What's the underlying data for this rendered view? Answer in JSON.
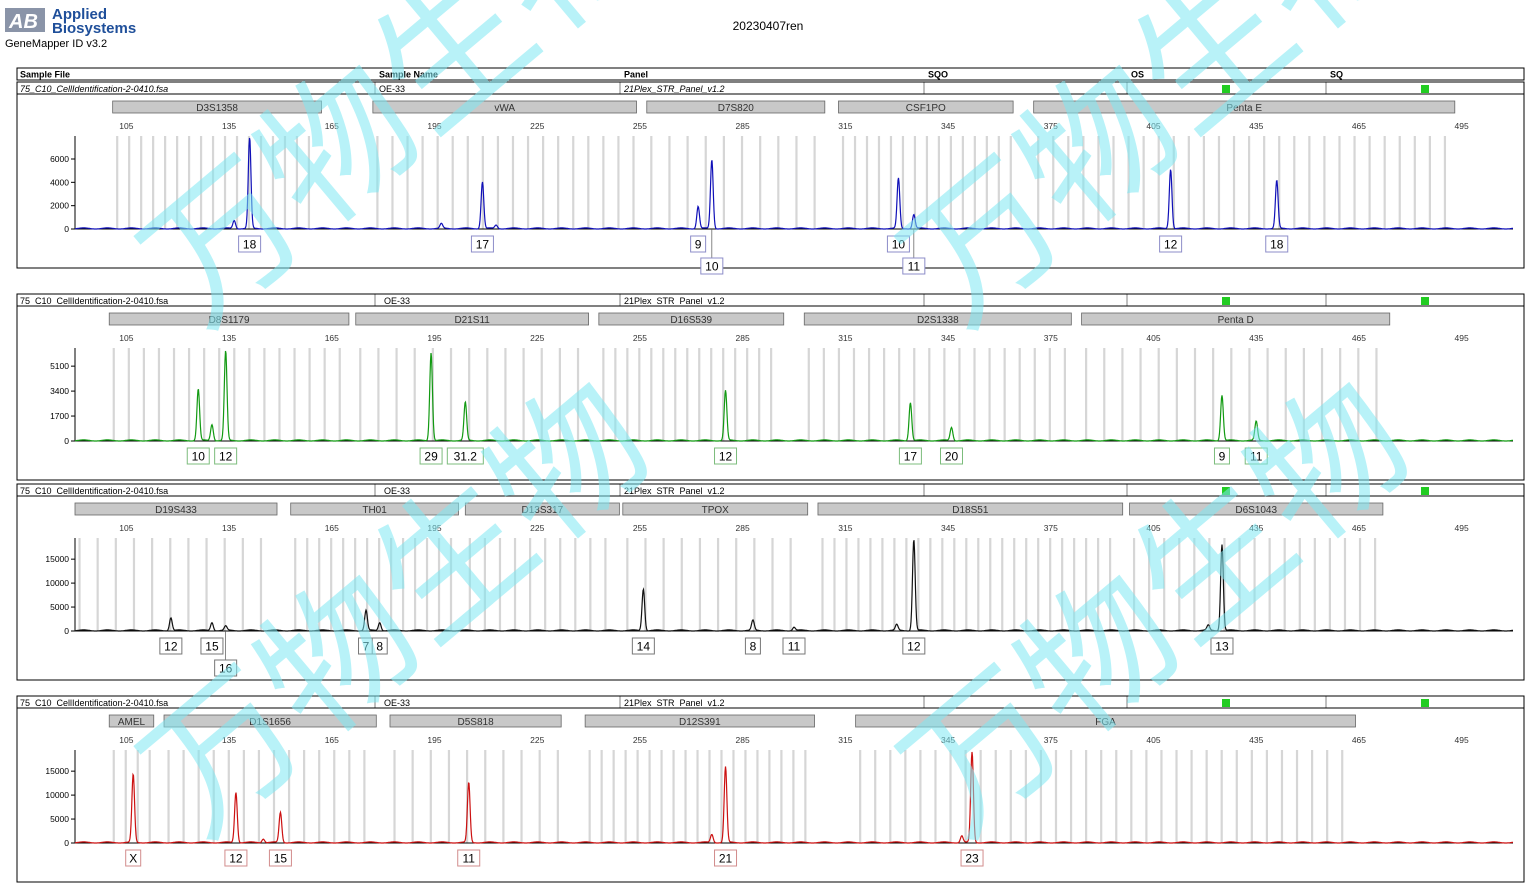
{
  "header": {
    "logo_line1": "Applied",
    "logo_line2": "Biosystems",
    "logo_mark": "AB",
    "software": "GeneMapper ID v3.2",
    "run_title": "20230407ren"
  },
  "columns": [
    "Sample File",
    "Sample Name",
    "Panel",
    "SQO",
    "OS",
    "SQ"
  ],
  "colors": {
    "status_ok": "#22cc22",
    "bin_gray": "#d6d6d6",
    "marker_box": "#c8c8c8",
    "watermark": "#7ee8f2"
  },
  "watermark_text": "万物生物",
  "size_axis": {
    "min": 90,
    "max": 510,
    "ticks": [
      105,
      135,
      165,
      195,
      225,
      255,
      285,
      315,
      345,
      375,
      405,
      435,
      465,
      495
    ]
  },
  "panels": [
    {
      "sample_file": "75_C10_CellIdentification-2-0410.fsa",
      "sample_name": "OE-33",
      "panel": "21Plex_STR_Panel_v1.2",
      "dye_color": "#1010b8",
      "label_border": "#8c8cc8",
      "y_ticks": [
        0,
        2000,
        4000,
        6000
      ],
      "y_max": 7800,
      "markers": [
        {
          "name": "D3S1358",
          "from": 101,
          "to": 162
        },
        {
          "name": "vWA",
          "from": 177,
          "to": 254
        },
        {
          "name": "D7S820",
          "from": 257,
          "to": 309
        },
        {
          "name": "CSF1PO",
          "from": 313,
          "to": 364
        },
        {
          "name": "Penta E",
          "from": 370,
          "to": 493
        }
      ],
      "peaks": [
        {
          "size": 141,
          "height": 7800,
          "allele": "18",
          "row": 1
        },
        {
          "size": 136.5,
          "height": 700
        },
        {
          "size": 197,
          "height": 400
        },
        {
          "size": 209,
          "height": 4000,
          "allele": "17",
          "row": 1
        },
        {
          "size": 213,
          "height": 300
        },
        {
          "size": 272,
          "height": 1900,
          "allele": "9",
          "row": 1
        },
        {
          "size": 276,
          "height": 5900,
          "allele": "10",
          "row": 2
        },
        {
          "size": 330.5,
          "height": 4300,
          "allele": "10",
          "row": 1
        },
        {
          "size": 335,
          "height": 1200,
          "allele": "11",
          "row": 2
        },
        {
          "size": 410,
          "height": 5100,
          "allele": "12",
          "row": 1
        },
        {
          "size": 441,
          "height": 4100,
          "allele": "18",
          "row": 1
        }
      ]
    },
    {
      "sample_file": "75_C10_CellIdentification-2-0410.fsa",
      "sample_name": "OE-33",
      "panel": "21Plex_STR_Panel_v1.2",
      "dye_color": "#129a12",
      "label_border": "#7cbc7c",
      "y_ticks": [
        0,
        1700,
        3400,
        5100
      ],
      "y_max": 6200,
      "markers": [
        {
          "name": "D8S1179",
          "from": 100,
          "to": 170
        },
        {
          "name": "D21S11",
          "from": 172,
          "to": 240
        },
        {
          "name": "D16S539",
          "from": 243,
          "to": 297
        },
        {
          "name": "D2S1338",
          "from": 303,
          "to": 381
        },
        {
          "name": "Penta D",
          "from": 384,
          "to": 474
        }
      ],
      "peaks": [
        {
          "size": 126,
          "height": 3500,
          "allele": "10",
          "row": 1
        },
        {
          "size": 130,
          "height": 1100
        },
        {
          "size": 134,
          "height": 6100,
          "allele": "12",
          "row": 1
        },
        {
          "size": 194,
          "height": 6000,
          "allele": "29",
          "row": 1
        },
        {
          "size": 204,
          "height": 2600,
          "allele": "31.2",
          "row": 1
        },
        {
          "size": 280,
          "height": 3400,
          "allele": "12",
          "row": 1
        },
        {
          "size": 334,
          "height": 2600,
          "allele": "17",
          "row": 1
        },
        {
          "size": 346,
          "height": 900,
          "allele": "20",
          "row": 1
        },
        {
          "size": 425,
          "height": 3100,
          "allele": "9",
          "row": 1
        },
        {
          "size": 435,
          "height": 1300,
          "allele": "11",
          "row": 1
        }
      ]
    },
    {
      "sample_file": "75_C10_CellIdentification-2-0410.fsa",
      "sample_name": "OE-33",
      "panel": "21Plex_STR_Panel_v1.2",
      "dye_color": "#111111",
      "label_border": "#777777",
      "y_ticks": [
        0,
        5000,
        10000,
        15000
      ],
      "y_max": 19000,
      "markers": [
        {
          "name": "D19S433",
          "from": 90,
          "to": 149
        },
        {
          "name": "TH01",
          "from": 153,
          "to": 202
        },
        {
          "name": "D13S317",
          "from": 204,
          "to": 249
        },
        {
          "name": "TPOX",
          "from": 250,
          "to": 304
        },
        {
          "name": "D18S51",
          "from": 307,
          "to": 396
        },
        {
          "name": "D6S1043",
          "from": 398,
          "to": 472
        }
      ],
      "peaks": [
        {
          "size": 118,
          "height": 2700,
          "allele": "12",
          "row": 1
        },
        {
          "size": 130,
          "height": 1700,
          "allele": "15",
          "row": 1
        },
        {
          "size": 134,
          "height": 900,
          "allele": "16",
          "row": 2
        },
        {
          "size": 175,
          "height": 4200,
          "allele": "7",
          "row": 1
        },
        {
          "size": 179,
          "height": 1700,
          "allele": "8",
          "row": 1
        },
        {
          "size": 256,
          "height": 8700,
          "allele": "14",
          "row": 1
        },
        {
          "size": 288,
          "height": 2100,
          "allele": "8",
          "row": 1
        },
        {
          "size": 300,
          "height": 700,
          "allele": "11",
          "row": 1
        },
        {
          "size": 330,
          "height": 1200
        },
        {
          "size": 335,
          "height": 19000,
          "allele": "12",
          "row": 1
        },
        {
          "size": 421,
          "height": 1100
        },
        {
          "size": 425,
          "height": 18000,
          "allele": "13",
          "row": 1
        }
      ]
    },
    {
      "sample_file": "75_C10_CellIdentification-2-0410.fsa",
      "sample_name": "OE-33",
      "panel": "21Plex_STR_Panel_v1.2",
      "dye_color": "#cc1111",
      "label_border": "#d28c8c",
      "y_ticks": [
        0,
        5000,
        10000,
        15000
      ],
      "y_max": 19000,
      "markers": [
        {
          "name": "AMEL",
          "from": 100,
          "to": 113
        },
        {
          "name": "D1S1656",
          "from": 116,
          "to": 178
        },
        {
          "name": "D5S818",
          "from": 182,
          "to": 232
        },
        {
          "name": "D12S391",
          "from": 239,
          "to": 306
        },
        {
          "name": "FGA",
          "from": 318,
          "to": 464
        }
      ],
      "peaks": [
        {
          "size": 107,
          "height": 14200,
          "allele": "X",
          "row": 1
        },
        {
          "size": 137,
          "height": 10500,
          "allele": "12",
          "row": 1
        },
        {
          "size": 150,
          "height": 6300,
          "allele": "15",
          "row": 1
        },
        {
          "size": 145,
          "height": 800
        },
        {
          "size": 205,
          "height": 12500,
          "allele": "11",
          "row": 1
        },
        {
          "size": 276,
          "height": 1700
        },
        {
          "size": 280,
          "height": 15800,
          "allele": "21",
          "row": 1
        },
        {
          "size": 349,
          "height": 1400
        },
        {
          "size": 352,
          "height": 19000,
          "allele": "23",
          "row": 1
        }
      ]
    }
  ]
}
